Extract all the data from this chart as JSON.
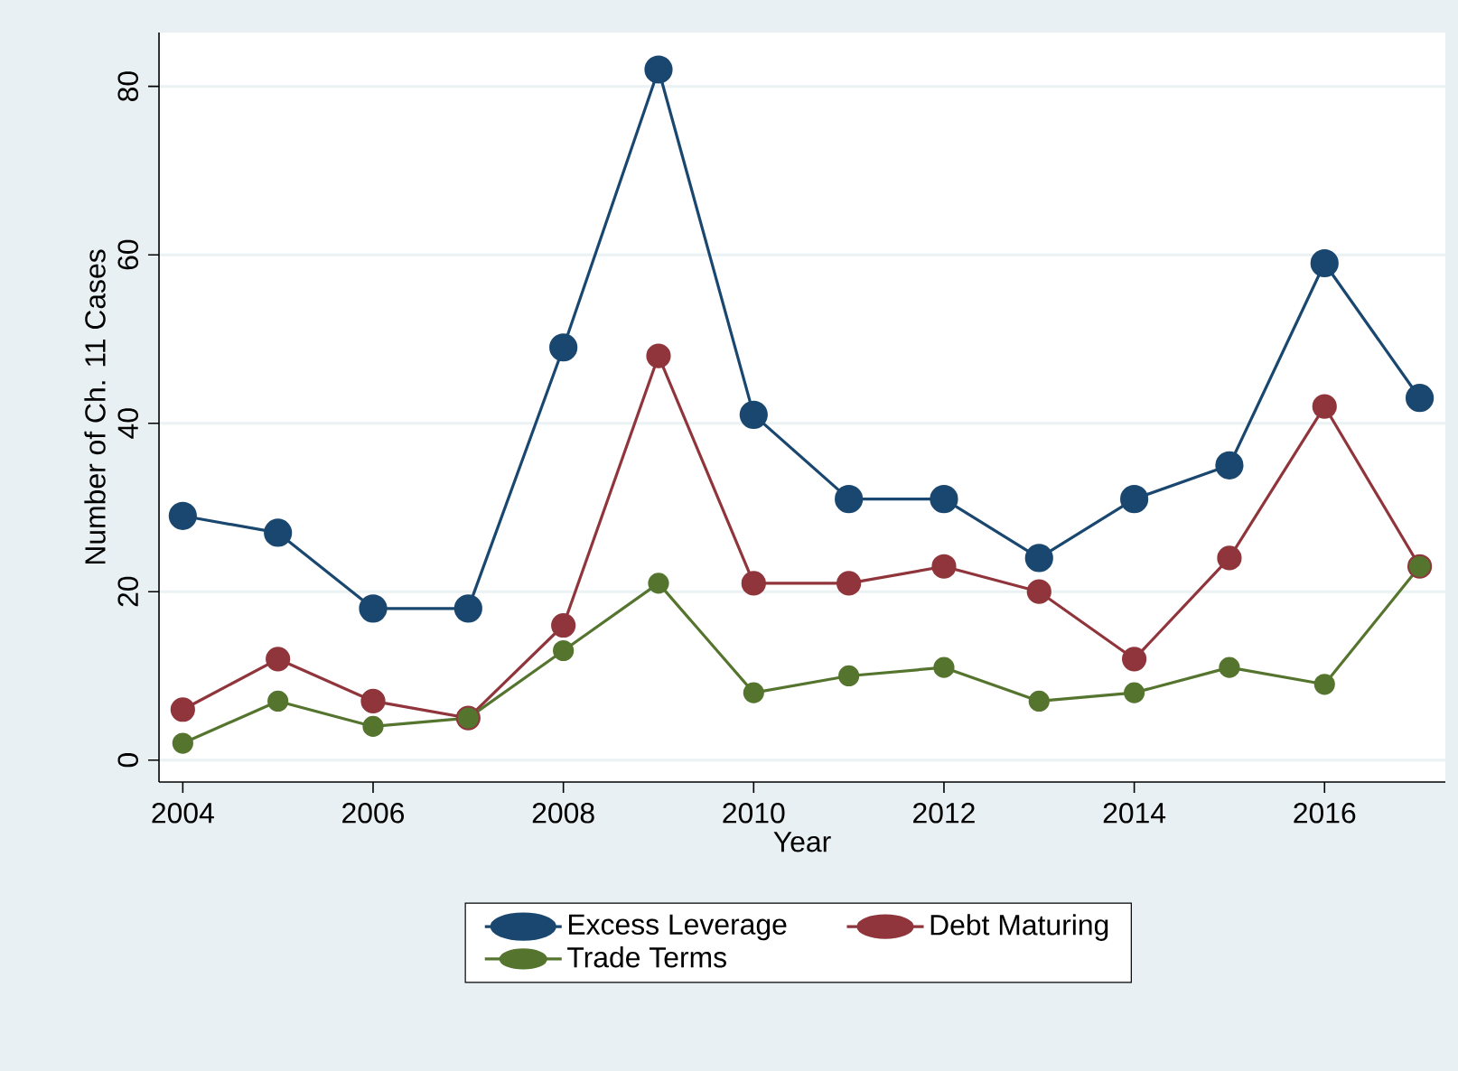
{
  "chart_data": {
    "type": "line",
    "xlabel": "Year",
    "ylabel": "Number of Ch. 11 Cases",
    "x": [
      2004,
      2005,
      2006,
      2007,
      2008,
      2009,
      2010,
      2011,
      2012,
      2013,
      2014,
      2015,
      2016,
      2017
    ],
    "series": [
      {
        "name": "Excess Leverage",
        "color": "#1a476f",
        "values": [
          29,
          27,
          18,
          18,
          49,
          82,
          41,
          31,
          31,
          24,
          31,
          35,
          59,
          43
        ]
      },
      {
        "name": "Debt Maturing",
        "color": "#90353b",
        "values": [
          6,
          12,
          7,
          5,
          16,
          48,
          21,
          21,
          23,
          20,
          12,
          24,
          42,
          23
        ]
      },
      {
        "name": "Trade Terms",
        "color": "#55752f",
        "values": [
          2,
          7,
          4,
          5,
          13,
          21,
          8,
          10,
          11,
          7,
          8,
          11,
          9,
          23
        ]
      }
    ],
    "xlim": [
      2003.75,
      2017.27
    ],
    "ylim": [
      -2.6,
      86.4
    ],
    "xticks": [
      2004,
      2006,
      2008,
      2010,
      2012,
      2014,
      2016
    ],
    "yticks": [
      0,
      20,
      40,
      60,
      80
    ],
    "grid": "y",
    "legend": "bottom",
    "marker": "circle",
    "line_style": "solid"
  }
}
